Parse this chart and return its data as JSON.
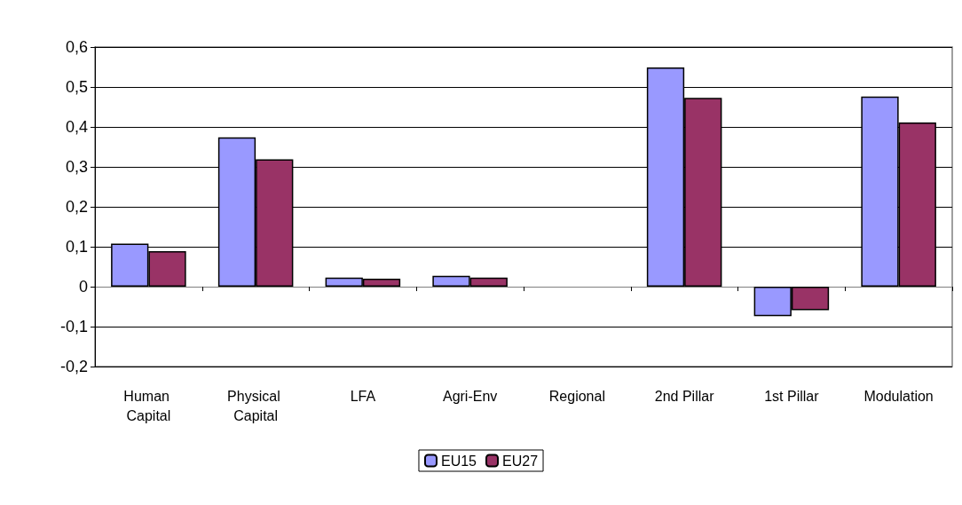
{
  "chart_data": {
    "type": "bar",
    "categories": [
      "Human Capital",
      "Physical Capital",
      "LFA",
      "Agri-Env",
      "Regional",
      "2nd Pillar",
      "1st Pillar",
      "Modulation"
    ],
    "series": [
      {
        "name": "EU15",
        "color": "#9999ff",
        "values": [
          0.108,
          0.374,
          0.023,
          0.027,
          null,
          0.549,
          -0.074,
          0.476
        ]
      },
      {
        "name": "EU27",
        "color": "#993366",
        "values": [
          0.089,
          0.319,
          0.02,
          0.023,
          null,
          0.473,
          -0.059,
          0.411
        ]
      }
    ],
    "ylim": [
      -0.2,
      0.6
    ],
    "yticks": [
      {
        "value": -0.2,
        "label": "-0,2"
      },
      {
        "value": -0.1,
        "label": "-0,1"
      },
      0,
      {
        "value": 0.1,
        "label": "0,1"
      },
      {
        "value": 0.2,
        "label": "0,2"
      },
      {
        "value": 0.3,
        "label": "0,3"
      },
      {
        "value": 0.4,
        "label": "0,4"
      },
      {
        "value": 0.5,
        "label": "0,5"
      },
      {
        "value": 0.6,
        "label": "0,6"
      }
    ],
    "grid": "y",
    "legend": "bottom"
  }
}
